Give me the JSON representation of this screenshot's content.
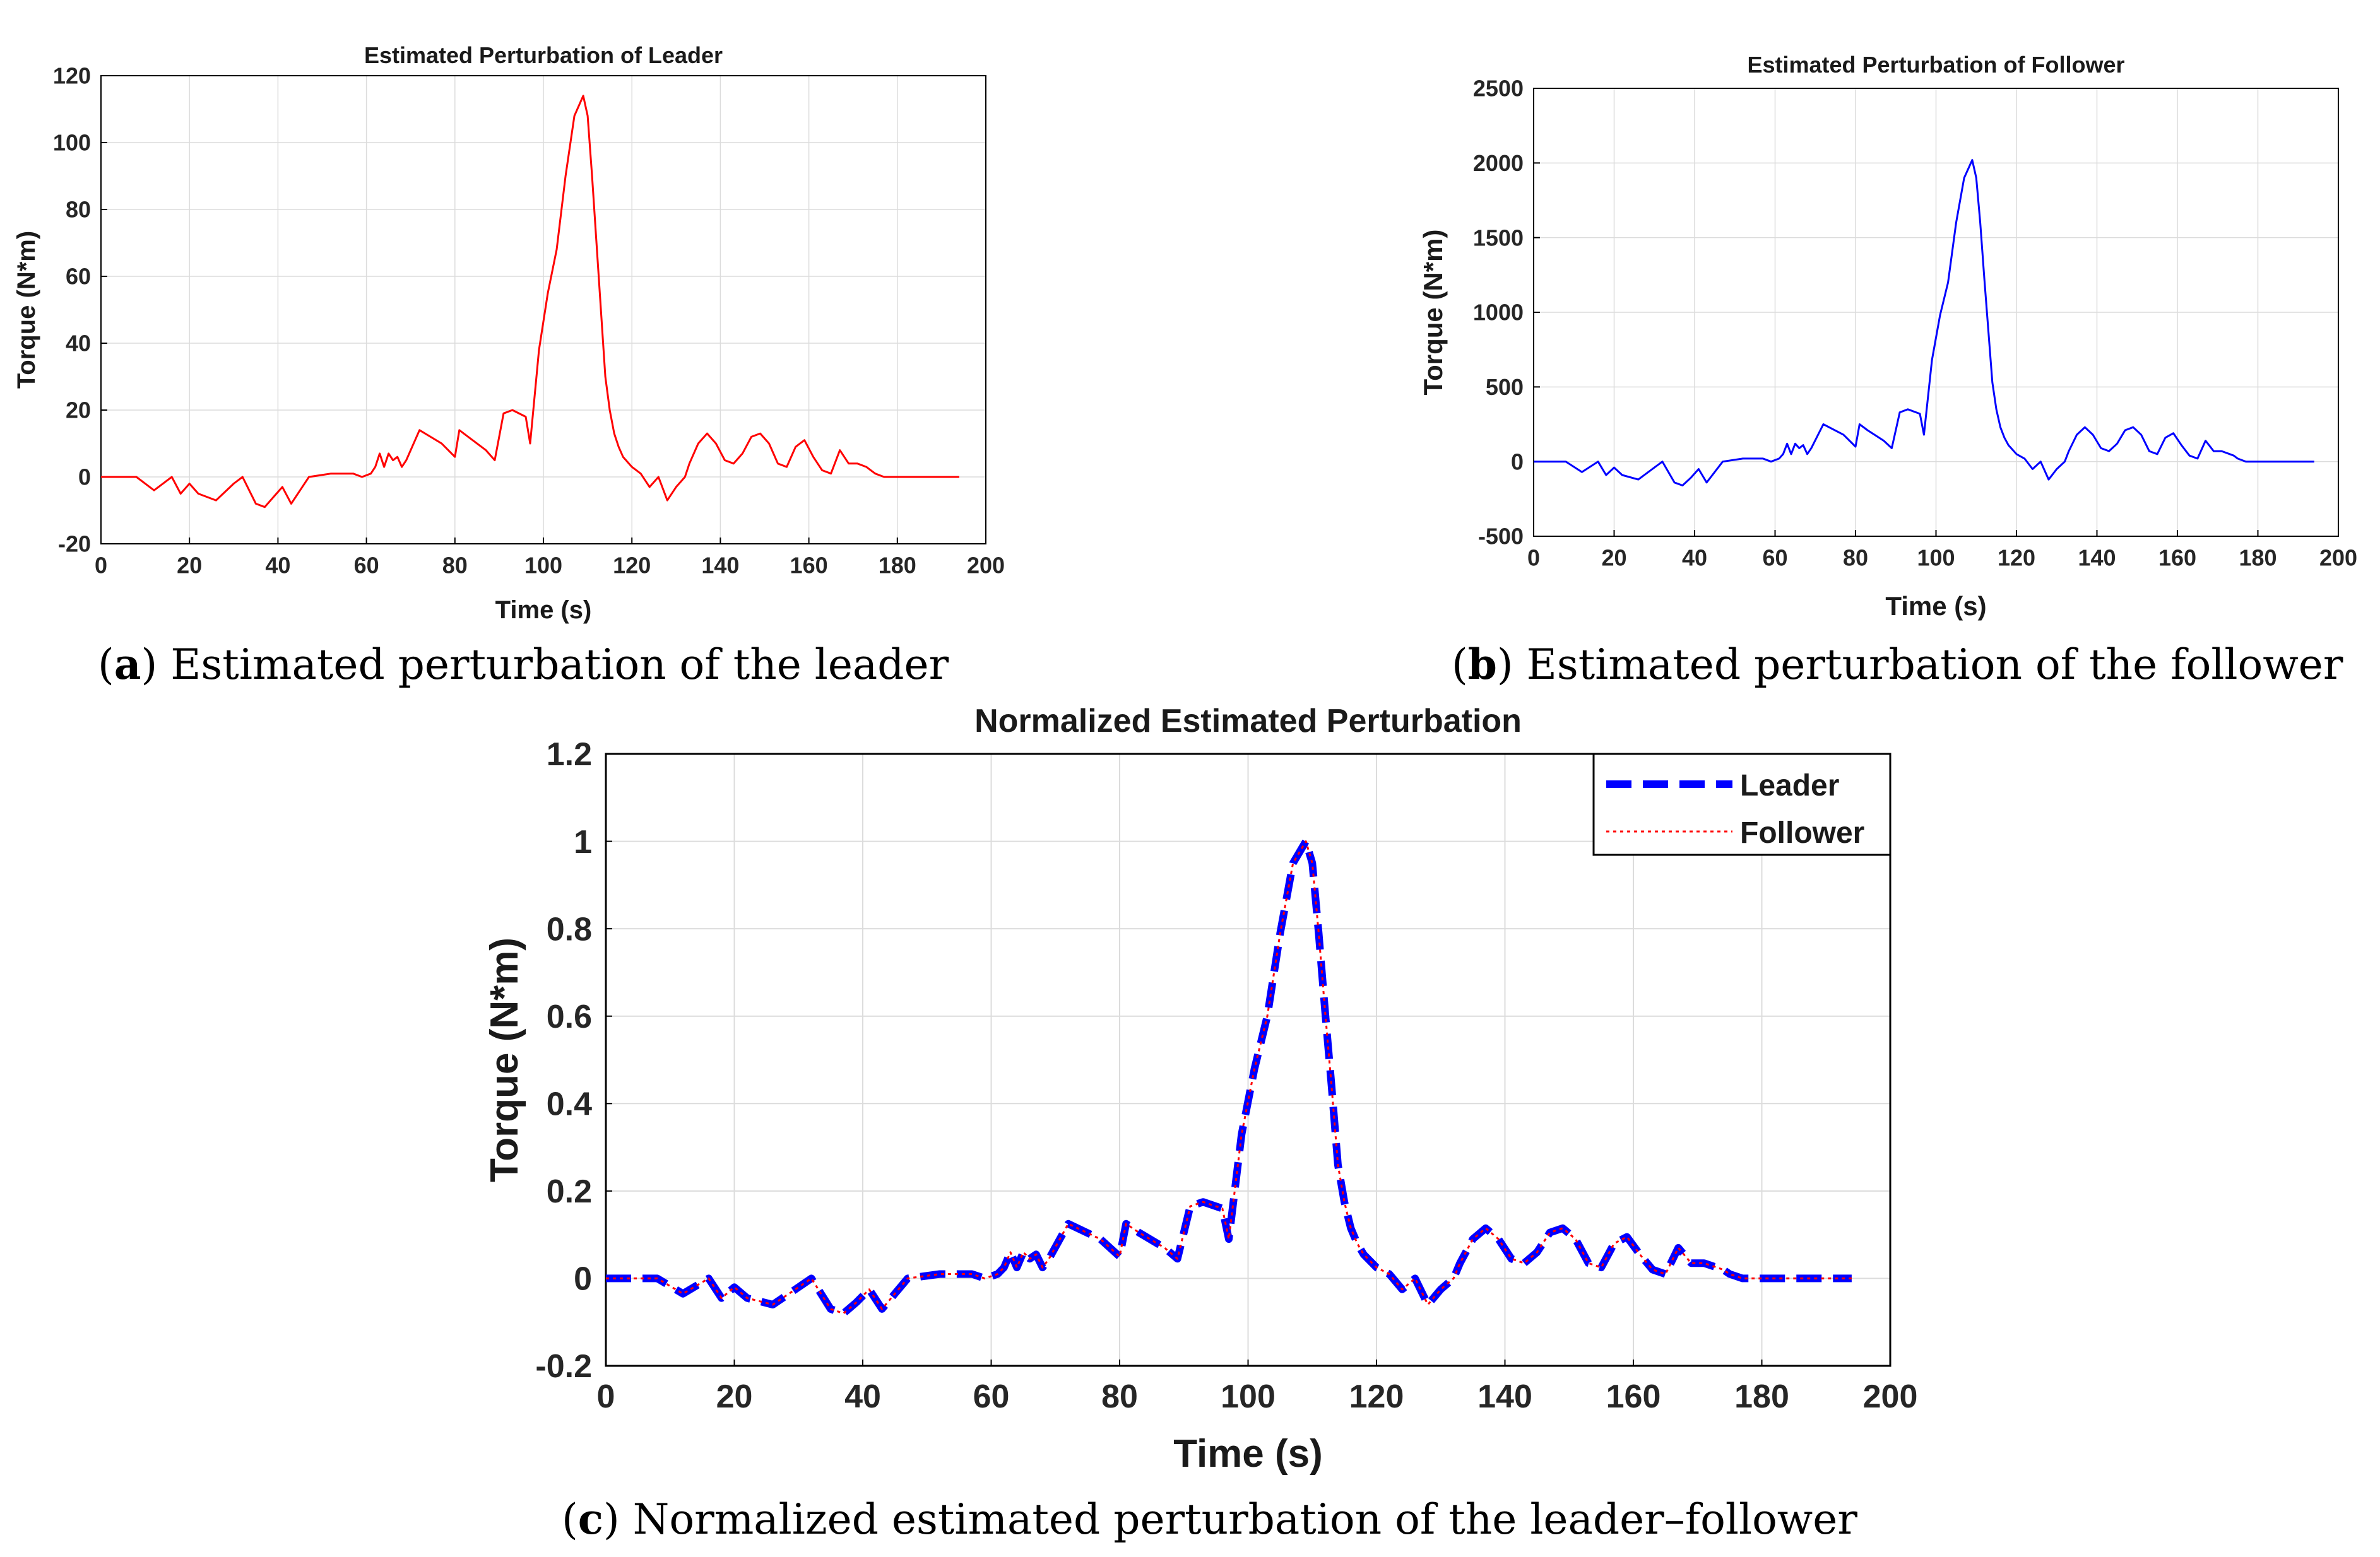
{
  "figure": {
    "captions": [
      {
        "letter": "a",
        "text": "Estimated perturbation of the leader"
      },
      {
        "letter": "b",
        "text": "Estimated perturbation of the follower"
      },
      {
        "letter": "c",
        "text": "Normalized estimated perturbation of the leader–follower"
      }
    ]
  },
  "chart_data": [
    {
      "id": "a",
      "type": "line",
      "title": "Estimated Perturbation of Leader",
      "xlabel": "Time (s)",
      "ylabel": "Torque (N*m)",
      "xlim": [
        0,
        200
      ],
      "ylim": [
        -20,
        120
      ],
      "xticks": [
        0,
        20,
        40,
        60,
        80,
        100,
        120,
        140,
        160,
        180,
        200
      ],
      "yticks": [
        -20,
        0,
        20,
        40,
        60,
        80,
        100,
        120
      ],
      "grid": true,
      "series": [
        {
          "name": "Leader",
          "color": "#ff0000",
          "style": "solid",
          "x": [
            0,
            8,
            12,
            16,
            18,
            20,
            22,
            26,
            30,
            32,
            35,
            37,
            39,
            41,
            43,
            47,
            52,
            57,
            59,
            61,
            62,
            63,
            64,
            65,
            66,
            67,
            68,
            69,
            72,
            77,
            80,
            81,
            83,
            87,
            89,
            91,
            93,
            96,
            97,
            99,
            101,
            103,
            105,
            107,
            109,
            110,
            111,
            112,
            113,
            114,
            115,
            116,
            117,
            118,
            120,
            122,
            124,
            126,
            128,
            130,
            132,
            133,
            135,
            137,
            139,
            141,
            143,
            145,
            147,
            149,
            151,
            153,
            155,
            157,
            159,
            161,
            163,
            165,
            167,
            169,
            171,
            173,
            174,
            175,
            177,
            179,
            183,
            188,
            194
          ],
          "values": [
            0,
            0,
            -4,
            0,
            -5,
            -2,
            -5,
            -7,
            -2,
            0,
            -8,
            -9,
            -6,
            -3,
            -8,
            0,
            1,
            1,
            0,
            1,
            3,
            7,
            3,
            7,
            5,
            6,
            3,
            5,
            14,
            10,
            6,
            14,
            12,
            8,
            5,
            19,
            20,
            18,
            10,
            38,
            55,
            68,
            90,
            108,
            114,
            108,
            90,
            70,
            50,
            30,
            20,
            13,
            9,
            6,
            3,
            1,
            -3,
            0,
            -7,
            -3,
            0,
            4,
            10,
            13,
            10,
            5,
            4,
            7,
            12,
            13,
            10,
            4,
            3,
            9,
            11,
            6,
            2,
            1,
            8,
            4,
            4,
            3,
            2,
            1,
            0,
            0,
            0,
            0,
            0
          ]
        }
      ]
    },
    {
      "id": "b",
      "type": "line",
      "title": "Estimated Perturbation of Follower",
      "xlabel": "Time (s)",
      "ylabel": "Torque (N*m)",
      "xlim": [
        0,
        200
      ],
      "ylim": [
        -500,
        2500
      ],
      "xticks": [
        0,
        20,
        40,
        60,
        80,
        100,
        120,
        140,
        160,
        180,
        200
      ],
      "yticks": [
        -500,
        0,
        500,
        1000,
        1500,
        2000,
        2500
      ],
      "grid": true,
      "series": [
        {
          "name": "Follower",
          "color": "#0000ff",
          "style": "solid",
          "x": [
            0,
            8,
            12,
            16,
            18,
            20,
            22,
            26,
            30,
            32,
            35,
            37,
            39,
            41,
            43,
            47,
            52,
            57,
            59,
            61,
            62,
            63,
            64,
            65,
            66,
            67,
            68,
            69,
            72,
            77,
            80,
            81,
            83,
            87,
            89,
            91,
            93,
            96,
            97,
            99,
            101,
            103,
            105,
            107,
            109,
            110,
            111,
            112,
            113,
            114,
            115,
            116,
            117,
            118,
            120,
            122,
            124,
            126,
            128,
            130,
            132,
            133,
            135,
            137,
            139,
            141,
            143,
            145,
            147,
            149,
            151,
            153,
            155,
            157,
            159,
            161,
            163,
            165,
            167,
            169,
            171,
            173,
            174,
            175,
            177,
            179,
            183,
            188,
            194
          ],
          "values": [
            0,
            0,
            -70,
            0,
            -90,
            -40,
            -90,
            -120,
            -40,
            0,
            -140,
            -160,
            -110,
            -50,
            -140,
            0,
            20,
            20,
            0,
            20,
            50,
            120,
            50,
            120,
            90,
            110,
            50,
            90,
            250,
            180,
            100,
            250,
            210,
            140,
            90,
            330,
            350,
            320,
            180,
            680,
            980,
            1200,
            1600,
            1900,
            2020,
            1900,
            1600,
            1230,
            880,
            530,
            350,
            230,
            160,
            110,
            50,
            20,
            -50,
            0,
            -120,
            -50,
            0,
            70,
            180,
            230,
            180,
            90,
            70,
            120,
            210,
            230,
            180,
            70,
            50,
            160,
            190,
            110,
            40,
            20,
            140,
            70,
            70,
            50,
            40,
            20,
            0,
            0,
            0,
            0,
            0
          ]
        }
      ]
    },
    {
      "id": "c",
      "type": "line",
      "title": "Normalized Estimated Perturbation",
      "xlabel": "Time (s)",
      "ylabel": "Torque (N*m)",
      "xlim": [
        0,
        200
      ],
      "ylim": [
        -0.2,
        1.2
      ],
      "xticks": [
        0,
        20,
        40,
        60,
        80,
        100,
        120,
        140,
        160,
        180,
        200
      ],
      "yticks": [
        -0.2,
        0,
        0.2,
        0.4,
        0.6,
        0.8,
        1,
        1.2
      ],
      "ytick_labels": [
        "-0.2",
        "0",
        "0.2",
        "0.4",
        "0.6",
        "0.8",
        "1",
        "1.2"
      ],
      "grid": true,
      "legend": "top-right",
      "series": [
        {
          "name": "Leader",
          "color": "#0000ff",
          "style": "dashed",
          "x": [
            0,
            8,
            12,
            16,
            18,
            20,
            22,
            26,
            30,
            32,
            35,
            37,
            39,
            41,
            43,
            47,
            52,
            57,
            59,
            61,
            62,
            63,
            64,
            65,
            66,
            67,
            68,
            69,
            72,
            77,
            80,
            81,
            83,
            87,
            89,
            91,
            93,
            96,
            97,
            99,
            101,
            103,
            105,
            107,
            109,
            110,
            111,
            112,
            113,
            114,
            115,
            116,
            117,
            118,
            120,
            122,
            124,
            126,
            128,
            130,
            132,
            133,
            135,
            137,
            139,
            141,
            143,
            145,
            147,
            149,
            151,
            153,
            155,
            157,
            159,
            161,
            163,
            165,
            167,
            169,
            171,
            173,
            174,
            175,
            177,
            179,
            183,
            188,
            194
          ],
          "values": [
            0,
            0,
            -0.035,
            0,
            -0.045,
            -0.02,
            -0.045,
            -0.06,
            -0.02,
            0,
            -0.07,
            -0.08,
            -0.055,
            -0.025,
            -0.07,
            0,
            0.01,
            0.01,
            0,
            0.01,
            0.025,
            0.06,
            0.025,
            0.06,
            0.045,
            0.055,
            0.025,
            0.045,
            0.125,
            0.09,
            0.05,
            0.125,
            0.105,
            0.07,
            0.045,
            0.165,
            0.175,
            0.16,
            0.09,
            0.33,
            0.48,
            0.6,
            0.79,
            0.95,
            1.0,
            0.95,
            0.79,
            0.61,
            0.44,
            0.26,
            0.175,
            0.115,
            0.08,
            0.055,
            0.025,
            0.01,
            -0.025,
            0,
            -0.06,
            -0.025,
            0,
            0.035,
            0.09,
            0.115,
            0.09,
            0.045,
            0.035,
            0.06,
            0.105,
            0.115,
            0.09,
            0.035,
            0.025,
            0.08,
            0.095,
            0.055,
            0.02,
            0.01,
            0.07,
            0.035,
            0.035,
            0.025,
            0.02,
            0.01,
            0,
            0,
            0,
            0,
            0
          ]
        },
        {
          "name": "Follower",
          "color": "#ff0000",
          "style": "dotted",
          "x": [
            0,
            8,
            12,
            16,
            18,
            20,
            22,
            26,
            30,
            32,
            35,
            37,
            39,
            41,
            43,
            47,
            52,
            57,
            59,
            61,
            62,
            63,
            64,
            65,
            66,
            67,
            68,
            69,
            72,
            77,
            80,
            81,
            83,
            87,
            89,
            91,
            93,
            96,
            97,
            99,
            101,
            103,
            105,
            107,
            109,
            110,
            111,
            112,
            113,
            114,
            115,
            116,
            117,
            118,
            120,
            122,
            124,
            126,
            128,
            130,
            132,
            133,
            135,
            137,
            139,
            141,
            143,
            145,
            147,
            149,
            151,
            153,
            155,
            157,
            159,
            161,
            163,
            165,
            167,
            169,
            171,
            173,
            174,
            175,
            177,
            179,
            183,
            188,
            194
          ],
          "values": [
            0,
            0,
            -0.035,
            0,
            -0.045,
            -0.02,
            -0.045,
            -0.06,
            -0.02,
            0,
            -0.07,
            -0.08,
            -0.055,
            -0.025,
            -0.07,
            0,
            0.01,
            0.01,
            0,
            0.01,
            0.025,
            0.06,
            0.025,
            0.06,
            0.045,
            0.055,
            0.025,
            0.045,
            0.125,
            0.09,
            0.05,
            0.125,
            0.105,
            0.07,
            0.045,
            0.165,
            0.175,
            0.16,
            0.09,
            0.33,
            0.48,
            0.6,
            0.79,
            0.95,
            1.0,
            0.95,
            0.79,
            0.61,
            0.44,
            0.26,
            0.175,
            0.115,
            0.08,
            0.055,
            0.025,
            0.01,
            -0.025,
            0,
            -0.06,
            -0.025,
            0,
            0.035,
            0.09,
            0.115,
            0.09,
            0.045,
            0.035,
            0.06,
            0.105,
            0.115,
            0.09,
            0.035,
            0.025,
            0.08,
            0.095,
            0.055,
            0.02,
            0.01,
            0.07,
            0.035,
            0.035,
            0.025,
            0.02,
            0.01,
            0,
            0,
            0,
            0,
            0
          ]
        }
      ]
    }
  ]
}
